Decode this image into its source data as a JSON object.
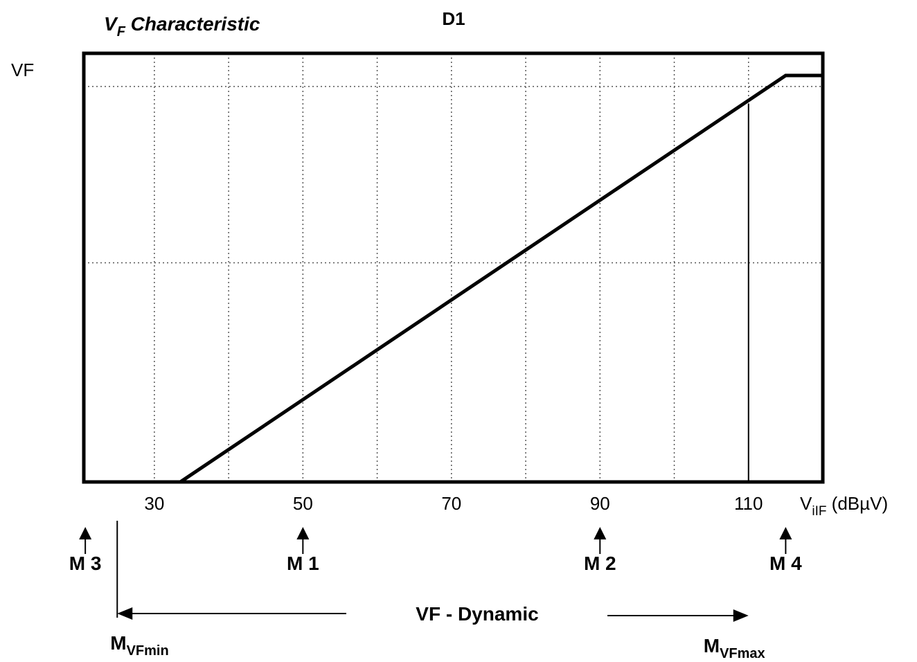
{
  "chart_data": {
    "type": "line",
    "title_main": "V",
    "title_sub": "F",
    "title_rest": " Characteristic",
    "device_label": "D1",
    "ylabel": "VF",
    "xlabel_main": "V",
    "xlabel_sub": "iIF",
    "xlabel_unit": " (dBµV)",
    "x_ticks": [
      "30",
      "50",
      "70",
      "90",
      "110"
    ],
    "xlim": [
      20.5,
      120
    ],
    "x_gridlines": [
      30,
      40,
      50,
      60,
      70,
      80,
      90,
      100,
      110
    ],
    "y_gridline_fractions": [
      0.5,
      0.9
    ],
    "grid": true,
    "series": [
      {
        "x": [
          33.5,
          115,
          120
        ],
        "y": [
          0,
          1,
          1
        ]
      }
    ],
    "vf_max_marker_x": 110,
    "markers": [
      {
        "label": "M 3",
        "x": 20.7
      },
      {
        "label": "M 1",
        "x": 50
      },
      {
        "label": "M 2",
        "x": 90
      },
      {
        "label": "M 4",
        "x": 115
      }
    ],
    "dynamic_range": {
      "label": "VF - Dynamic",
      "min_label_main": "M",
      "min_label_sub": "VFmin",
      "max_label_main": "M",
      "max_label_sub": "VFmax",
      "min_x": 25,
      "max_x": 110
    }
  }
}
